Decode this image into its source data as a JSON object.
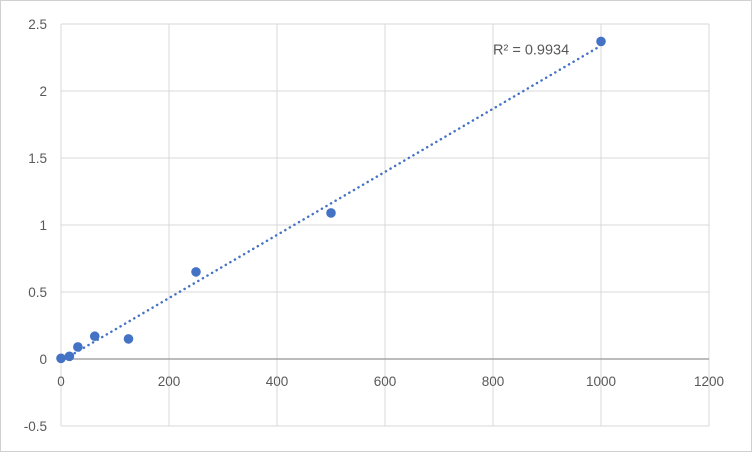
{
  "chart_data": {
    "type": "scatter",
    "title": "",
    "xlabel": "",
    "ylabel": "",
    "x": [
      0,
      15.6,
      31.25,
      62.5,
      125,
      250,
      500,
      1000
    ],
    "y": [
      0.005,
      0.02,
      0.09,
      0.17,
      0.15,
      0.65,
      1.09,
      2.37
    ],
    "xlim": [
      0,
      1200
    ],
    "ylim": [
      -0.5,
      2.5
    ],
    "x_ticks": [
      0,
      200,
      400,
      600,
      800,
      1000,
      1200
    ],
    "x_tick_labels": [
      "0",
      "200",
      "400",
      "600",
      "800",
      "1000",
      "1200"
    ],
    "y_ticks": [
      -0.5,
      0,
      0.5,
      1,
      1.5,
      2,
      2.5
    ],
    "y_tick_labels": [
      "-0.5",
      "0",
      "0.5",
      "1",
      "1.5",
      "2",
      "2.5"
    ],
    "grid": true,
    "legend": "none",
    "trendline": {
      "style": "dotted",
      "slope": 0.002354,
      "intercept": -0.016,
      "x_start": 0,
      "x_end": 1000
    },
    "annotation": {
      "text": "R² = 0.9934",
      "x": 800,
      "y": 2.31
    },
    "colors": {
      "marker": "#4472C4",
      "trendline": "#4472C4",
      "gridline": "#D9D9D9",
      "plot_border": "#D9D9D9",
      "axis_line": "#A6A6A6",
      "tick_label": "#595959",
      "annotation": "#595959",
      "background": "#FFFFFF",
      "frame_border": "#D0D0D0"
    },
    "tick_font_size": 13.5,
    "annotation_font_size": 14.5,
    "marker_radius": 4.8
  }
}
